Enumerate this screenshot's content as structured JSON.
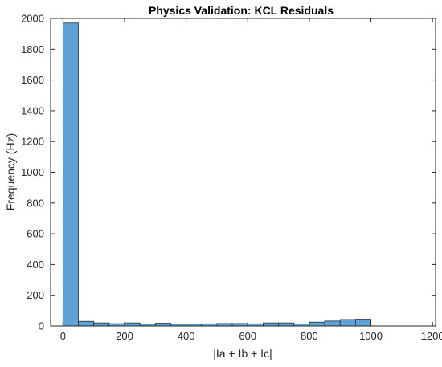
{
  "chart_data": {
    "type": "bar",
    "title": "Physics Validation: KCL Residuals",
    "xlabel": "|Ia + Ib + Ic|",
    "ylabel": "Frequency (Hz)",
    "xlim": [
      -40,
      1210
    ],
    "ylim": [
      0,
      2000
    ],
    "xticks": [
      0,
      200,
      400,
      600,
      800,
      1000,
      1200
    ],
    "yticks": [
      0,
      200,
      400,
      600,
      800,
      1000,
      1200,
      1400,
      1600,
      1800,
      2000
    ],
    "xtick_labels": [
      "0",
      "200",
      "400",
      "600",
      "800",
      "1000",
      "1200"
    ],
    "ytick_labels": [
      "0",
      "200",
      "400",
      "600",
      "800",
      "1000",
      "1200",
      "1400",
      "1600",
      "1800",
      "2000"
    ],
    "bin_width": 50,
    "bin_edges": [
      0,
      50,
      100,
      150,
      200,
      250,
      300,
      350,
      400,
      450,
      500,
      550,
      600,
      650,
      700,
      750,
      800,
      850,
      900,
      950,
      1000
    ],
    "values": [
      1970,
      30,
      20,
      15,
      20,
      12,
      18,
      12,
      12,
      14,
      16,
      16,
      14,
      20,
      20,
      13,
      25,
      32,
      42,
      44
    ],
    "colors": {
      "bar_fill": "#5fa3d6",
      "bar_edge": "#1f2d3d",
      "axes": "#262626"
    },
    "grid": false,
    "legend": "none"
  }
}
